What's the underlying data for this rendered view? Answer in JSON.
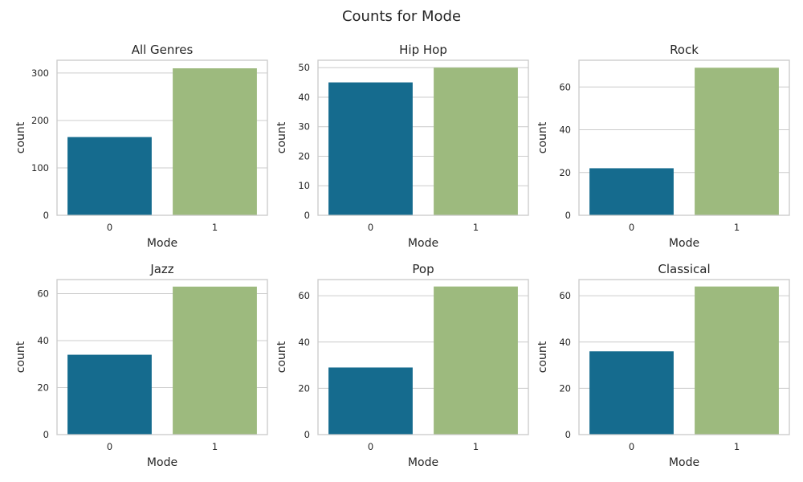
{
  "chart_data": {
    "type": "bar",
    "title": "Counts for Mode",
    "colors": {
      "0": "#156b8e",
      "1": "#9dba7e"
    },
    "grid": true,
    "panels": [
      {
        "title": "All Genres",
        "xlabel": "Mode",
        "ylabel": "count",
        "categories": [
          "0",
          "1"
        ],
        "values": [
          165,
          310
        ],
        "ylim": [
          0,
          327
        ],
        "yticks": [
          0,
          100,
          200,
          300
        ]
      },
      {
        "title": "Hip Hop",
        "xlabel": "Mode",
        "ylabel": "count",
        "categories": [
          "0",
          "1"
        ],
        "values": [
          45,
          50
        ],
        "ylim": [
          0,
          52.5
        ],
        "yticks": [
          0,
          10,
          20,
          30,
          40,
          50
        ]
      },
      {
        "title": "Rock",
        "xlabel": "Mode",
        "ylabel": "count",
        "categories": [
          "0",
          "1"
        ],
        "values": [
          22,
          69
        ],
        "ylim": [
          0,
          72.5
        ],
        "yticks": [
          0,
          20,
          40,
          60
        ]
      },
      {
        "title": "Jazz",
        "xlabel": "Mode",
        "ylabel": "count",
        "categories": [
          "0",
          "1"
        ],
        "values": [
          34,
          63
        ],
        "ylim": [
          0,
          66
        ],
        "yticks": [
          0,
          20,
          40,
          60
        ]
      },
      {
        "title": "Pop",
        "xlabel": "Mode",
        "ylabel": "count",
        "categories": [
          "0",
          "1"
        ],
        "values": [
          29,
          64
        ],
        "ylim": [
          0,
          67
        ],
        "yticks": [
          0,
          20,
          40,
          60
        ]
      },
      {
        "title": "Classical",
        "xlabel": "Mode",
        "ylabel": "count",
        "categories": [
          "0",
          "1"
        ],
        "values": [
          36,
          64
        ],
        "ylim": [
          0,
          67
        ],
        "yticks": [
          0,
          20,
          40,
          60
        ]
      }
    ]
  }
}
